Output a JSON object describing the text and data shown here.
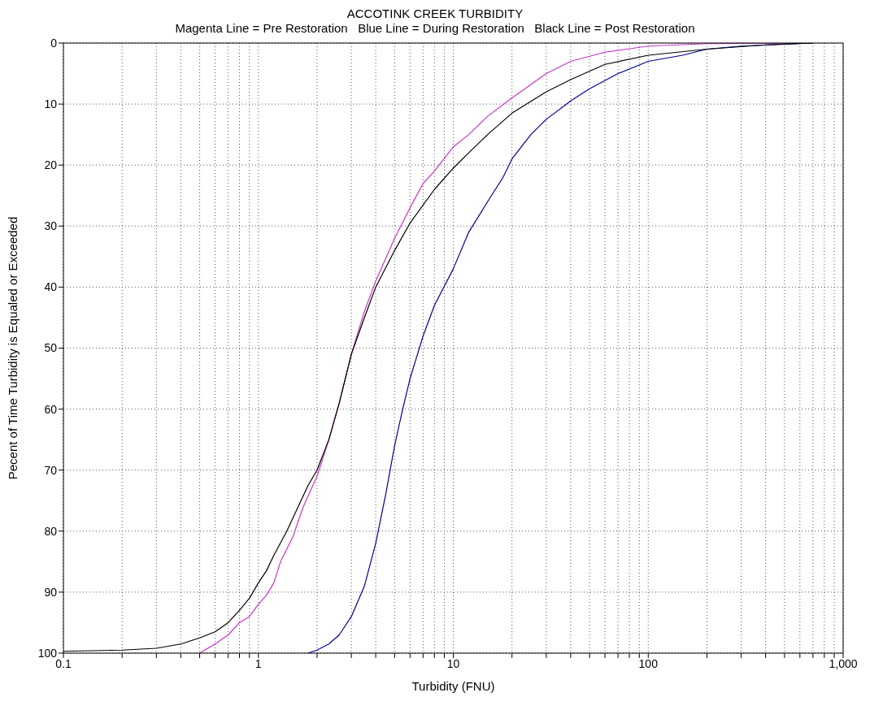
{
  "chart_data": {
    "type": "line",
    "title": "ACCOTINK CREEK TURBIDITY",
    "subtitle": "Magenta Line = Pre Restoration   Blue Line = During Restoration   Black Line = Post Restoration",
    "xlabel": "Turbidity (FNU)",
    "ylabel": "Pecent of Time Turbidity is Equaled or Exceeded",
    "log": "x",
    "grid": true,
    "xlim": [
      0.1,
      1000
    ],
    "ylim": [
      100,
      0
    ],
    "xticks": [
      0.1,
      {
        "value": 0.2,
        "label": null
      },
      {
        "value": 0.3,
        "label": null
      },
      {
        "value": 0.4,
        "label": null
      },
      {
        "value": 0.5,
        "label": null
      },
      {
        "value": 0.6,
        "label": null
      },
      {
        "value": 0.7,
        "label": null
      },
      {
        "value": 0.8,
        "label": null
      },
      {
        "value": 0.9,
        "label": null
      },
      1,
      {
        "value": 2,
        "label": null
      },
      {
        "value": 3,
        "label": null
      },
      {
        "value": 4,
        "label": null
      },
      {
        "value": 5,
        "label": null
      },
      {
        "value": 6,
        "label": null
      },
      {
        "value": 7,
        "label": null
      },
      {
        "value": 8,
        "label": null
      },
      {
        "value": 9,
        "label": null
      },
      10,
      {
        "value": 20,
        "label": null
      },
      {
        "value": 30,
        "label": null
      },
      {
        "value": 40,
        "label": null
      },
      {
        "value": 50,
        "label": null
      },
      {
        "value": 60,
        "label": null
      },
      {
        "value": 70,
        "label": null
      },
      {
        "value": 80,
        "label": null
      },
      {
        "value": 90,
        "label": null
      },
      100,
      {
        "value": 200,
        "label": null
      },
      {
        "value": 300,
        "label": null
      },
      {
        "value": 400,
        "label": null
      },
      {
        "value": 500,
        "label": null
      },
      {
        "value": 600,
        "label": null
      },
      {
        "value": 700,
        "label": null
      },
      {
        "value": 800,
        "label": null
      },
      {
        "value": 900,
        "label": null
      },
      {
        "value": 1000,
        "label": "1,000"
      }
    ],
    "yticks": [
      0,
      10,
      20,
      30,
      40,
      50,
      60,
      70,
      80,
      90,
      100
    ],
    "series": [
      {
        "color": "#cc33cc",
        "x": [
          0.5,
          0.6,
          0.7,
          0.8,
          0.9,
          1,
          1.1,
          1.2,
          1.3,
          1.5,
          1.7,
          2,
          2.3,
          2.6,
          3,
          3.5,
          4,
          5,
          6,
          7,
          8,
          10,
          12,
          15,
          20,
          30,
          40,
          60,
          100,
          200,
          700
        ],
        "values": [
          100,
          98.5,
          97,
          95,
          94,
          92,
          90.5,
          88.5,
          85,
          81,
          76,
          71,
          65,
          59,
          51,
          44,
          39,
          32,
          27,
          23,
          21,
          17,
          15,
          12,
          9,
          5,
          3,
          1.5,
          0.5,
          0.1,
          0
        ]
      },
      {
        "color": "#000099",
        "x": [
          1.8,
          2,
          2.3,
          2.6,
          3,
          3.5,
          4,
          4.5,
          5,
          5.5,
          6,
          7,
          8,
          10,
          12,
          15,
          18,
          20,
          25,
          30,
          40,
          50,
          70,
          100,
          150,
          200,
          300,
          700
        ],
        "values": [
          100,
          99.5,
          98.5,
          97,
          94,
          89,
          82,
          74,
          66,
          60,
          55,
          48,
          43,
          37,
          31,
          26,
          22,
          19,
          15,
          12.5,
          9.5,
          7.5,
          5,
          3,
          2,
          1,
          0.5,
          0
        ]
      },
      {
        "color": "#000000",
        "x": [
          0.1,
          0.2,
          0.3,
          0.4,
          0.5,
          0.6,
          0.7,
          0.8,
          0.9,
          1,
          1.1,
          1.2,
          1.4,
          1.6,
          1.8,
          2,
          2.3,
          2.6,
          3,
          3.5,
          4,
          5,
          6,
          8,
          10,
          12,
          15,
          20,
          30,
          40,
          60,
          100,
          200,
          400,
          700
        ],
        "values": [
          99.7,
          99.5,
          99.2,
          98.5,
          97.5,
          96.5,
          95,
          93,
          91,
          88.5,
          86.5,
          84,
          80,
          76,
          72.5,
          70,
          65,
          59,
          51,
          45,
          40,
          34,
          29.5,
          24,
          20.5,
          18,
          15,
          11.5,
          8,
          6,
          3.5,
          2,
          1,
          0.3,
          0
        ]
      }
    ]
  }
}
